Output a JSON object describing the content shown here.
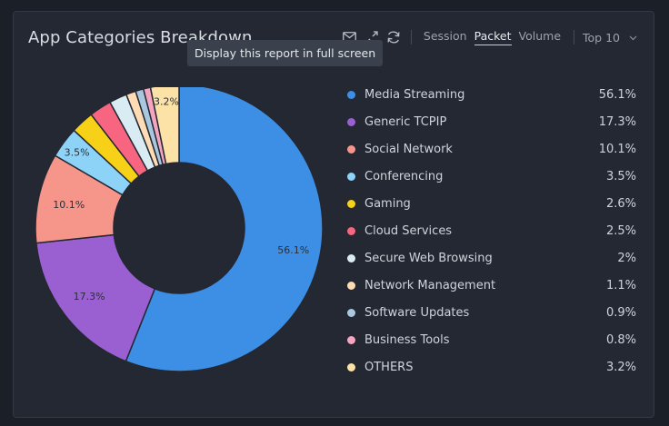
{
  "card": {
    "title": "App Categories Breakdown"
  },
  "toolbar": {
    "icons": [
      "mail-icon",
      "expand-icon",
      "refresh-icon"
    ],
    "tabs": [
      "Session",
      "Packet",
      "Volume"
    ],
    "active_tab": "Packet",
    "dropdown_value": "Top 10"
  },
  "tooltip": {
    "text": "Display this report in full screen"
  },
  "chart_data": {
    "type": "pie",
    "style": "donut",
    "categories": [
      "Media Streaming",
      "Generic TCPIP",
      "Social Network",
      "Conferencing",
      "Gaming",
      "Cloud Services",
      "Secure Web Browsing",
      "Network Management",
      "Software Updates",
      "Business Tools",
      "OTHERS"
    ],
    "values": [
      56.1,
      17.3,
      10.1,
      3.5,
      2.6,
      2.5,
      2,
      1.1,
      0.9,
      0.8,
      3.2
    ],
    "value_labels": [
      "56.1%",
      "17.3%",
      "10.1%",
      "3.5%",
      "2.6%",
      "2.5%",
      "2%",
      "1.1%",
      "0.9%",
      "0.8%",
      "3.2%"
    ],
    "colors": [
      "#3d8fe6",
      "#9a5fd0",
      "#f6968b",
      "#8dd3f7",
      "#f7d117",
      "#f76580",
      "#d9ecf3",
      "#ffdcb4",
      "#a9c8df",
      "#f4a6c0",
      "#fde2a8"
    ],
    "slice_labels_shown": [
      "56.1%",
      "17.3%",
      "10.1%",
      "3.5%",
      "3.2%"
    ],
    "legend_position": "right"
  }
}
